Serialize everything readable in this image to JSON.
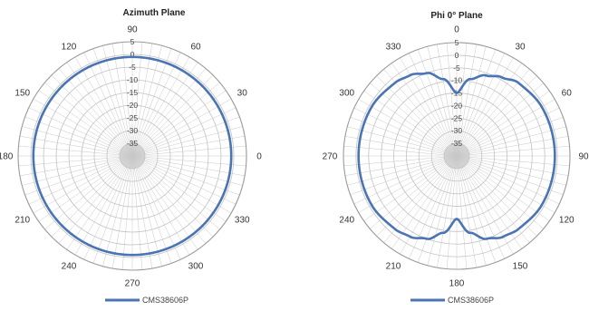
{
  "colors": {
    "series": "#4a74b4",
    "grid": "#c2c2c2",
    "spoke": "#c8c8c8",
    "outer_ring": "#9a9a9a",
    "center_fill": "#d9d9d9"
  },
  "chart_data": [
    {
      "type": "polar-line",
      "title": "Azimuth Plane",
      "angle_unit": "degrees",
      "angle_labels": [
        "0",
        "30",
        "60",
        "90",
        "120",
        "150",
        "180",
        "210",
        "240",
        "270",
        "300",
        "330"
      ],
      "angle_label_angles": [
        0,
        30,
        60,
        90,
        120,
        150,
        180,
        210,
        240,
        270,
        300,
        330
      ],
      "angle_zero_direction": "right",
      "angle_direction": "counterclockwise",
      "r_range": [
        -40,
        5
      ],
      "r_tick_labels": [
        "5",
        "0",
        "-5",
        "-10",
        "-15",
        "-20",
        "-25",
        "-30",
        "-35"
      ],
      "series": [
        {
          "name": "CMS38606P",
          "points": [
            {
              "angle": 0,
              "value": -1
            },
            {
              "angle": 30,
              "value": -1
            },
            {
              "angle": 60,
              "value": -1
            },
            {
              "angle": 90,
              "value": -1
            },
            {
              "angle": 120,
              "value": -1
            },
            {
              "angle": 150,
              "value": -1
            },
            {
              "angle": 180,
              "value": -1
            },
            {
              "angle": 210,
              "value": -1
            },
            {
              "angle": 240,
              "value": -1
            },
            {
              "angle": 270,
              "value": -1
            },
            {
              "angle": 300,
              "value": -1
            },
            {
              "angle": 330,
              "value": -1
            }
          ]
        }
      ],
      "legend": "bottom-center"
    },
    {
      "type": "polar-line",
      "title": "Phi 0° Plane",
      "angle_unit": "degrees",
      "angle_labels": [
        "0",
        "30",
        "60",
        "90",
        "120",
        "150",
        "180",
        "210",
        "240",
        "270",
        "300",
        "330"
      ],
      "angle_label_angles": [
        0,
        30,
        60,
        90,
        120,
        150,
        180,
        210,
        240,
        270,
        300,
        330
      ],
      "angle_zero_direction": "top",
      "angle_direction": "clockwise",
      "r_range": [
        -40,
        5
      ],
      "r_tick_labels": [
        "5",
        "0",
        "-5",
        "-10",
        "-15",
        "-20",
        "-25",
        "-30",
        "-35"
      ],
      "series": [
        {
          "name": "CMS38606P",
          "points": [
            {
              "angle": 0,
              "value": -15
            },
            {
              "angle": 10,
              "value": -9
            },
            {
              "angle": 20,
              "value": -6
            },
            {
              "angle": 30,
              "value": -4
            },
            {
              "angle": 40,
              "value": -2
            },
            {
              "angle": 60,
              "value": -1
            },
            {
              "angle": 90,
              "value": -1
            },
            {
              "angle": 120,
              "value": -1
            },
            {
              "angle": 140,
              "value": -2
            },
            {
              "angle": 150,
              "value": -3
            },
            {
              "angle": 160,
              "value": -5
            },
            {
              "angle": 170,
              "value": -9
            },
            {
              "angle": 180,
              "value": -15
            },
            {
              "angle": 190,
              "value": -9
            },
            {
              "angle": 200,
              "value": -5
            },
            {
              "angle": 210,
              "value": -3
            },
            {
              "angle": 220,
              "value": -2
            },
            {
              "angle": 240,
              "value": -1
            },
            {
              "angle": 270,
              "value": -1
            },
            {
              "angle": 300,
              "value": -1
            },
            {
              "angle": 320,
              "value": -2
            },
            {
              "angle": 330,
              "value": -3
            },
            {
              "angle": 340,
              "value": -5
            },
            {
              "angle": 350,
              "value": -9
            },
            {
              "angle": 360,
              "value": -15
            }
          ]
        }
      ],
      "legend": "bottom-center"
    }
  ]
}
